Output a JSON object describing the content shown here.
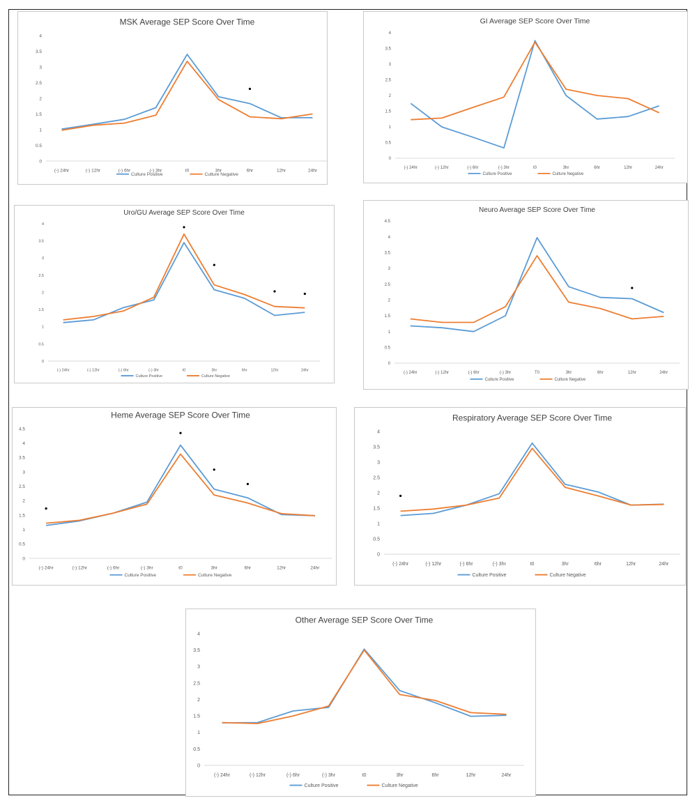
{
  "colors": {
    "series1": "#5B9BD5",
    "series2": "#ED7D31",
    "axis": "#d9d9d9",
    "text": "#595959",
    "title": "#404040",
    "marker": "#000000"
  },
  "chart_data": [
    {
      "type": "line",
      "title": "MSK Average SEP Score Over Time",
      "categories": [
        "(-) 24hr",
        "(-) 12hr",
        "(-) 6hr",
        "(-) 3hr",
        "t0",
        "3hr",
        "6hr",
        "12hr",
        "24hr"
      ],
      "ylim": [
        0,
        4
      ],
      "yticks": [
        "0",
        "0.5",
        "1",
        "1.5",
        "2",
        "2.5",
        "3",
        "3.5",
        "4"
      ],
      "series": [
        {
          "name": "Culture Positive",
          "values": [
            1.02,
            1.17,
            1.33,
            1.7,
            3.4,
            2.05,
            1.83,
            1.38,
            1.38
          ]
        },
        {
          "name": "Culture Negative",
          "values": [
            0.98,
            1.14,
            1.21,
            1.46,
            3.18,
            1.96,
            1.41,
            1.35,
            1.5
          ]
        }
      ],
      "markers": [
        {
          "x": "6hr",
          "y": 2.3
        }
      ],
      "legend": "bottom",
      "grid": false
    },
    {
      "type": "line",
      "title": "GI Average SEP Score Over Time",
      "categories": [
        "(-) 24hr",
        "(-) 12hr",
        "(-) 6hr",
        "(-) 3hr",
        "t0",
        "3hr",
        "6hr",
        "12hr",
        "24hr"
      ],
      "ylim": [
        0,
        4
      ],
      "yticks": [
        "0",
        "0.5",
        "1",
        "1.5",
        "2",
        "2.5",
        "3",
        "3.5",
        "4"
      ],
      "series": [
        {
          "name": "Culture Positive",
          "values": [
            1.75,
            1.0,
            0.67,
            0.33,
            3.75,
            2.0,
            1.25,
            1.33,
            1.67
          ]
        },
        {
          "name": "Culture Negative",
          "values": [
            1.23,
            1.28,
            1.62,
            1.95,
            3.7,
            2.2,
            2.0,
            1.9,
            1.45
          ]
        }
      ],
      "markers": [],
      "legend": "bottom",
      "grid": false
    },
    {
      "type": "line",
      "title": "Uro/GU Average SEP Score Over Time",
      "categories": [
        "(-) 24hr",
        "(-) 12hr",
        "(-) 6hr",
        "(-) 3hr",
        "t0",
        "3hr",
        "6hr",
        "12hr",
        "24hr"
      ],
      "ylim": [
        0,
        4
      ],
      "yticks": [
        "0",
        "0.5",
        "1",
        "1.5",
        "2",
        "2.5",
        "3",
        "3.5",
        "4"
      ],
      "series": [
        {
          "name": "Culture Positive",
          "values": [
            1.12,
            1.2,
            1.56,
            1.78,
            3.45,
            2.08,
            1.83,
            1.33,
            1.42
          ]
        },
        {
          "name": "Culture Negative",
          "values": [
            1.2,
            1.3,
            1.46,
            1.86,
            3.7,
            2.22,
            1.94,
            1.59,
            1.55
          ]
        }
      ],
      "markers": [
        {
          "x": "t0",
          "y": 3.9
        },
        {
          "x": "3hr",
          "y": 2.8
        },
        {
          "x": "12hr",
          "y": 2.03
        },
        {
          "x": "24hr",
          "y": 1.96
        }
      ],
      "legend": "bottom",
      "grid": false
    },
    {
      "type": "line",
      "title": "Neuro Average SEP Score Over Time",
      "categories": [
        "(-) 24hr",
        "(-) 12hr",
        "(-) 6hr",
        "(-) 3hr",
        "T0",
        "3hr",
        "6hr",
        "12hr",
        "24hr"
      ],
      "ylim": [
        0,
        4.5
      ],
      "yticks": [
        "0",
        "0.5",
        "1",
        "1.5",
        "2",
        "2.5",
        "3",
        "3.5",
        "4",
        "4.5"
      ],
      "series": [
        {
          "name": "Culture Positive",
          "values": [
            1.18,
            1.12,
            1.0,
            1.5,
            3.97,
            2.42,
            2.08,
            2.04,
            1.6
          ]
        },
        {
          "name": "Culture Negative",
          "values": [
            1.4,
            1.29,
            1.29,
            1.79,
            3.4,
            1.93,
            1.73,
            1.4,
            1.48
          ]
        }
      ],
      "markers": [
        {
          "x": "12hr",
          "y": 2.38
        }
      ],
      "legend": "bottom",
      "grid": false
    },
    {
      "type": "line",
      "title": "Heme Average SEP Score Over Time",
      "categories": [
        "(-) 24hr",
        "(-) 12hr",
        "(-) 6hr",
        "(-) 3hr",
        "t0",
        "3hr",
        "6hr",
        "12hr",
        "24hr"
      ],
      "ylim": [
        0,
        4.5
      ],
      "yticks": [
        "0",
        "0.5",
        "1",
        "1.5",
        "2",
        "2.5",
        "3",
        "3.5",
        "4",
        "4.5"
      ],
      "series": [
        {
          "name": "Culture Positive",
          "values": [
            1.14,
            1.3,
            1.57,
            1.95,
            3.93,
            2.4,
            2.1,
            1.52,
            1.48
          ]
        },
        {
          "name": "Culture Negative",
          "values": [
            1.22,
            1.32,
            1.57,
            1.88,
            3.62,
            2.2,
            1.92,
            1.55,
            1.48
          ]
        }
      ],
      "markers": [
        {
          "x": "(-) 24hr",
          "y": 1.73
        },
        {
          "x": "t0",
          "y": 4.35
        },
        {
          "x": "3hr",
          "y": 3.08
        },
        {
          "x": "6hr",
          "y": 2.58
        }
      ],
      "legend": "bottom",
      "grid": false
    },
    {
      "type": "line",
      "title": "Respiratory Average SEP Score Over Time",
      "categories": [
        "(-) 24hr",
        "(-) 12hr",
        "(-) 6hr",
        "(-) 3hr",
        "t0",
        "3hr",
        "6hr",
        "12hr",
        "24hr"
      ],
      "ylim": [
        0,
        4
      ],
      "yticks": [
        "0",
        "0.5",
        "1",
        "1.5",
        "2",
        "2.5",
        "3",
        "3.5",
        "4"
      ],
      "series": [
        {
          "name": "Culture Positive",
          "values": [
            1.26,
            1.33,
            1.6,
            1.97,
            3.62,
            2.28,
            2.03,
            1.6,
            1.63
          ]
        },
        {
          "name": "Culture Negative",
          "values": [
            1.4,
            1.47,
            1.6,
            1.83,
            3.45,
            2.18,
            1.9,
            1.6,
            1.62
          ]
        }
      ],
      "markers": [
        {
          "x": "(-) 24hr",
          "y": 1.9
        }
      ],
      "legend": "bottom",
      "grid": false
    },
    {
      "type": "line",
      "title": "Other Average SEP Score Over Time",
      "categories": [
        "(-) 24hr",
        "(-) 12hr",
        "(-) 6hr",
        "(-) 3hr",
        "t0",
        "3hr",
        "6hr",
        "12hr",
        "24hr"
      ],
      "ylim": [
        0,
        4
      ],
      "yticks": [
        "0",
        "0.5",
        "1",
        "1.5",
        "2",
        "2.5",
        "3",
        "3.5",
        "4"
      ],
      "series": [
        {
          "name": "Culture Positive",
          "values": [
            1.29,
            1.3,
            1.65,
            1.76,
            3.53,
            2.27,
            1.9,
            1.49,
            1.52
          ]
        },
        {
          "name": "Culture Negative",
          "values": [
            1.3,
            1.27,
            1.5,
            1.8,
            3.5,
            2.15,
            1.97,
            1.6,
            1.55
          ]
        }
      ],
      "markers": [],
      "legend": "bottom",
      "grid": false
    }
  ]
}
